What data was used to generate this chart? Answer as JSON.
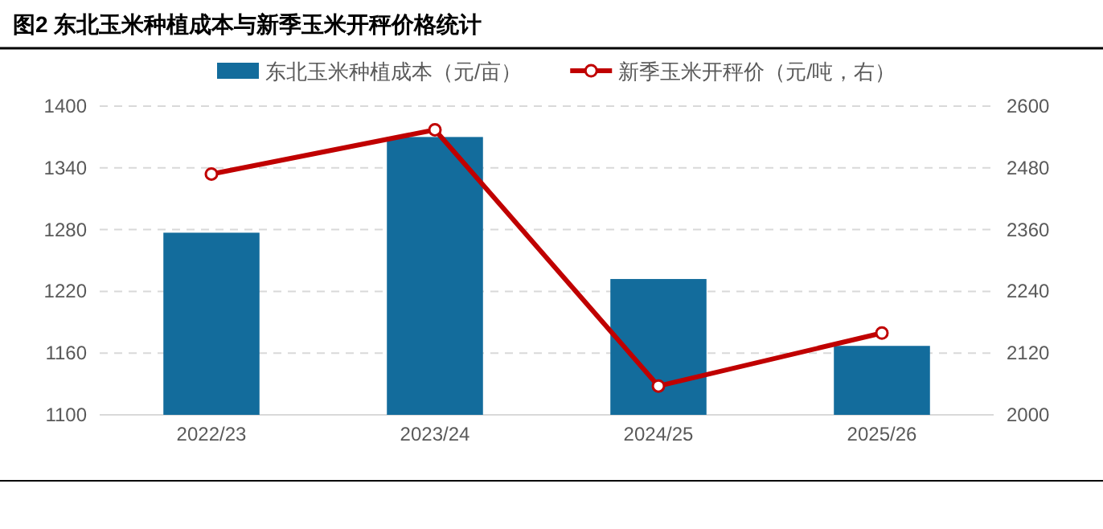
{
  "chart_data": {
    "type": "bar",
    "title": "图2 东北玉米种植成本与新季玉米开秤价格统计",
    "categories": [
      "2022/23",
      "2023/24",
      "2024/25",
      "2025/26"
    ],
    "series": [
      {
        "name": "东北玉米种植成本（元/亩）",
        "color": "#136c9c",
        "values": [
          1277,
          1370,
          1232,
          1167
        ]
      },
      {
        "name": "新季玉米开秤价（元/吨，右）",
        "type": "line",
        "axis": "y2",
        "color": "#c00000",
        "marker": "circle",
        "values": [
          2468,
          2554,
          2056,
          2159
        ]
      }
    ],
    "ylim": [
      1100,
      1400
    ],
    "yticks": [
      1100,
      1160,
      1220,
      1280,
      1340,
      1400
    ],
    "y2lim": [
      2000,
      2600
    ],
    "y2ticks": [
      2000,
      2120,
      2240,
      2360,
      2480,
      2600
    ],
    "grid": "y",
    "legend": "top"
  }
}
